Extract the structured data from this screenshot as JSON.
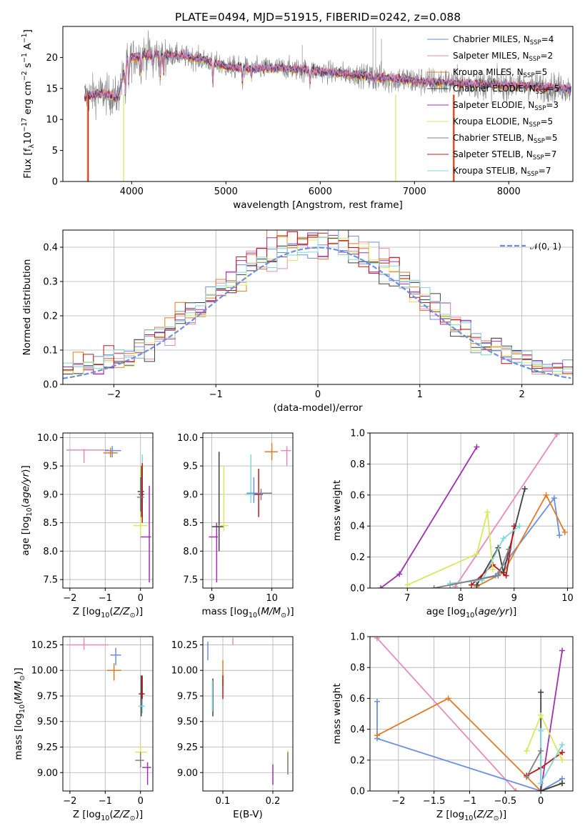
{
  "title": "PLATE=0494, MJD=51915, FIBERID=0242, z=0.088",
  "colors": {
    "s1": "#6b8fe0",
    "s2": "#e58bbd",
    "s3": "#e07b28",
    "s4": "#404040",
    "s5": "#a030b0",
    "s6": "#d8e860",
    "s7": "#808080",
    "s8": "#c01818",
    "s9": "#80d8d8",
    "normal": "#6b8fe0",
    "data": "#bbbbbb",
    "grid": "#b0b0b0"
  },
  "legend_spectrum": [
    {
      "base": "Chabrier MILES, N",
      "sub": "SSP",
      "tail": "=4",
      "color": "s1"
    },
    {
      "base": "Salpeter MILES, N",
      "sub": "SSP",
      "tail": "=2",
      "color": "s2"
    },
    {
      "base": "Kroupa MILES, N",
      "sub": "SSP",
      "tail": "=5",
      "color": "s3"
    },
    {
      "base": "Chabrier ELODIE, N",
      "sub": "SSP",
      "tail": "=5",
      "color": "s4"
    },
    {
      "base": "Salpeter ELODIE, N",
      "sub": "SSP",
      "tail": "=3",
      "color": "s5"
    },
    {
      "base": "Kroupa ELODIE, N",
      "sub": "SSP",
      "tail": "=5",
      "color": "s6"
    },
    {
      "base": "Chabrier STELIB, N",
      "sub": "SSP",
      "tail": "=5",
      "color": "s7"
    },
    {
      "base": "Salpeter STELIB, N",
      "sub": "SSP",
      "tail": "=7",
      "color": "s8"
    },
    {
      "base": "Kroupa STELIB, N",
      "sub": "SSP",
      "tail": "=7",
      "color": "s9"
    }
  ],
  "legend_hist": "𝒩(0, 1)",
  "chart_data": [
    {
      "id": "spectrum",
      "type": "line",
      "xlabel": "wavelength [Angstrom, rest frame]",
      "ylabel": "Flux [f_λ 10^-17 erg cm^-2 s^-1 A^-1]",
      "xlim": [
        3270,
        8680
      ],
      "ylim": [
        0,
        25
      ],
      "xticks": [
        4000,
        5000,
        6000,
        7000,
        8000
      ],
      "yticks": [
        0,
        5,
        10,
        15,
        20
      ],
      "continuum": [
        [
          3500,
          13.8
        ],
        [
          3700,
          14.2
        ],
        [
          3850,
          13.5
        ],
        [
          3950,
          19.5
        ],
        [
          4100,
          20.5
        ],
        [
          4300,
          20.5
        ],
        [
          4500,
          20.3
        ],
        [
          4800,
          19.5
        ],
        [
          5000,
          18.5
        ],
        [
          5300,
          18.2
        ],
        [
          5600,
          18.3
        ],
        [
          5900,
          17.9
        ],
        [
          6100,
          17.6
        ],
        [
          6400,
          17.2
        ],
        [
          6600,
          16.8
        ],
        [
          7000,
          16.2
        ],
        [
          7400,
          15.9
        ],
        [
          7800,
          15.6
        ],
        [
          8200,
          15.4
        ],
        [
          8660,
          15.0
        ]
      ]
    },
    {
      "id": "residuals",
      "type": "histogram",
      "xlabel": "(data-model)/error",
      "ylabel": "Normed distribution",
      "xlim": [
        -2.5,
        2.5
      ],
      "ylim": [
        0,
        0.45
      ],
      "xticks": [
        -2,
        -1,
        0,
        1,
        2
      ],
      "yticks": [
        0.0,
        0.1,
        0.2,
        0.3,
        0.4
      ],
      "reference": "N(0,1)"
    },
    {
      "id": "age_vs_Z",
      "type": "scatter",
      "xlabel": "Z [log10(Z/Z⊙)]",
      "ylabel": "age  [log10(age/yr)]",
      "xlim": [
        -2.2,
        0.35
      ],
      "ylim": [
        7.35,
        10.08
      ],
      "xticks": [
        -2,
        -1,
        0
      ],
      "yticks": [
        7.5,
        8.0,
        8.5,
        9.0,
        9.5,
        10.0
      ],
      "points": [
        {
          "c": "s2",
          "x": -1.6,
          "y": 9.78,
          "xe": [
            -2.1,
            -0.9
          ],
          "ye": [
            9.55,
            9.8
          ]
        },
        {
          "c": "s1",
          "x": -0.8,
          "y": 9.77,
          "xe": [
            -1.0,
            -0.55
          ],
          "ye": [
            9.65,
            9.85
          ]
        },
        {
          "c": "s3",
          "x": -0.85,
          "y": 9.73,
          "xe": [
            -1.05,
            -0.65
          ],
          "ye": [
            9.65,
            9.82
          ]
        },
        {
          "c": "s4",
          "x": 0.02,
          "y": 9.05,
          "xe": [
            -0.08,
            0.1
          ],
          "ye": [
            8.6,
            9.5
          ]
        },
        {
          "c": "s9",
          "x": 0.05,
          "y": 9.0,
          "xe": [
            -0.05,
            0.12
          ],
          "ye": [
            8.6,
            9.7
          ]
        },
        {
          "c": "s5",
          "x": 0.25,
          "y": 8.25,
          "xe": [
            0.0,
            0.3
          ],
          "ye": [
            7.45,
            9.15
          ]
        },
        {
          "c": "s6",
          "x": 0.0,
          "y": 8.45,
          "xe": [
            -0.2,
            0.2
          ],
          "ye": [
            8.25,
            9.5
          ]
        },
        {
          "c": "s8",
          "x": 0.05,
          "y": 9.0,
          "xe": [
            -0.05,
            0.1
          ],
          "ye": [
            8.5,
            9.55
          ]
        },
        {
          "c": "s7",
          "x": 0.0,
          "y": 8.95,
          "xe": [
            -0.1,
            0.1
          ],
          "ye": [
            8.7,
            9.3
          ]
        }
      ]
    },
    {
      "id": "age_vs_mass",
      "type": "scatter",
      "xlabel": "mass [log10(M/M⊙)]",
      "ylabel": "",
      "xlim": [
        8.85,
        10.35
      ],
      "ylim": [
        7.35,
        10.08
      ],
      "xticks": [
        9,
        10
      ],
      "yticks": [
        7.5,
        8.0,
        8.5,
        9.0,
        9.5,
        10.0
      ],
      "points": [
        {
          "c": "s2",
          "x": 10.25,
          "y": 9.77,
          "xe": [
            10.15,
            10.32
          ],
          "ye": [
            9.5,
            9.85
          ]
        },
        {
          "c": "s3",
          "x": 10.0,
          "y": 9.75,
          "xe": [
            9.88,
            10.1
          ],
          "ye": [
            9.6,
            9.9
          ]
        },
        {
          "c": "s5",
          "x": 9.08,
          "y": 8.25,
          "xe": [
            8.95,
            9.1
          ],
          "ye": [
            7.45,
            8.5
          ]
        },
        {
          "c": "s4",
          "x": 9.12,
          "y": 8.43,
          "xe": [
            9.0,
            9.2
          ],
          "ye": [
            8.0,
            9.75
          ]
        },
        {
          "c": "s6",
          "x": 9.2,
          "y": 8.45,
          "xe": [
            9.12,
            9.28
          ],
          "ye": [
            8.35,
            9.5
          ]
        },
        {
          "c": "s9",
          "x": 9.65,
          "y": 9.0,
          "xe": [
            9.55,
            9.75
          ],
          "ye": [
            8.85,
            9.7
          ]
        },
        {
          "c": "s8",
          "x": 9.78,
          "y": 9.0,
          "xe": [
            9.7,
            9.85
          ],
          "ye": [
            8.6,
            9.45
          ]
        },
        {
          "c": "s7",
          "x": 9.82,
          "y": 9.02,
          "xe": [
            9.62,
            10.0
          ],
          "ye": [
            8.9,
            9.1
          ]
        },
        {
          "c": "s1",
          "x": 9.7,
          "y": 9.02,
          "xe": [
            9.58,
            9.85
          ],
          "ye": [
            8.85,
            9.3
          ]
        }
      ]
    },
    {
      "id": "weight_vs_age",
      "type": "line",
      "xlabel": "age  [log10(age/yr)]",
      "ylabel": "mass weight",
      "xlim": [
        6.3,
        10.1
      ],
      "ylim": [
        0,
        1
      ],
      "xticks": [
        7,
        8,
        9,
        10
      ],
      "yticks": [
        0.0,
        0.2,
        0.4,
        0.6,
        0.8,
        1.0
      ],
      "series": [
        {
          "c": "s5",
          "x": [
            6.5,
            6.85,
            8.3
          ],
          "y": [
            0.0,
            0.09,
            0.91
          ]
        },
        {
          "c": "s2",
          "x": [
            7.9,
            9.8
          ],
          "y": [
            0.01,
            0.99
          ]
        },
        {
          "c": "s1",
          "x": [
            7.8,
            8.65,
            9.75,
            9.85
          ],
          "y": [
            0.02,
            0.08,
            0.58,
            0.34
          ]
        },
        {
          "c": "s3",
          "x": [
            8.3,
            8.8,
            9.6,
            9.95
          ],
          "y": [
            0.01,
            0.1,
            0.6,
            0.36
          ]
        },
        {
          "c": "s4",
          "x": [
            8.3,
            8.7,
            8.8,
            9.2
          ],
          "y": [
            0.02,
            0.26,
            0.1,
            0.64
          ]
        },
        {
          "c": "s8",
          "x": [
            8.2,
            8.6,
            8.85,
            9.0
          ],
          "y": [
            0.02,
            0.15,
            0.08,
            0.4
          ]
        },
        {
          "c": "s6",
          "x": [
            7.0,
            8.3,
            8.5,
            8.6
          ],
          "y": [
            0.02,
            0.22,
            0.49,
            0.12
          ]
        },
        {
          "c": "s9",
          "x": [
            7.8,
            8.4,
            8.8,
            9.1
          ],
          "y": [
            0.03,
            0.05,
            0.32,
            0.4
          ]
        },
        {
          "c": "s7",
          "x": [
            7.5,
            8.7,
            8.9
          ],
          "y": [
            0.0,
            0.08,
            0.25
          ]
        }
      ]
    },
    {
      "id": "mass_vs_Z",
      "type": "scatter",
      "xlabel": "Z [log10(Z/Z⊙)]",
      "ylabel": "mass [log10(M/M⊙)]",
      "xlim": [
        -2.2,
        0.35
      ],
      "ylim": [
        8.82,
        10.33
      ],
      "xticks": [
        -2,
        -1,
        0
      ],
      "yticks": [
        9.0,
        9.25,
        9.5,
        9.75,
        10.0,
        10.25
      ],
      "points": [
        {
          "c": "s2",
          "x": -1.6,
          "y": 10.25,
          "xe": [
            -2.1,
            -0.9
          ],
          "ye": [
            10.2,
            10.32
          ]
        },
        {
          "c": "s1",
          "x": -0.7,
          "y": 10.15,
          "xe": [
            -0.85,
            -0.55
          ],
          "ye": [
            10.05,
            10.22
          ]
        },
        {
          "c": "s3",
          "x": -0.75,
          "y": 10.0,
          "xe": [
            -0.95,
            -0.55
          ],
          "ye": [
            9.9,
            10.07
          ]
        },
        {
          "c": "s8",
          "x": 0.05,
          "y": 9.77,
          "xe": [
            -0.05,
            0.12
          ],
          "ye": [
            9.65,
            9.95
          ]
        },
        {
          "c": "s4",
          "x": 0.02,
          "y": 9.65,
          "xe": [
            -0.05,
            0.1
          ],
          "ye": [
            9.55,
            9.95
          ]
        },
        {
          "c": "s9",
          "x": 0.05,
          "y": 9.65,
          "xe": [
            -0.05,
            0.12
          ],
          "ye": [
            9.58,
            9.72
          ]
        },
        {
          "c": "s6",
          "x": 0.0,
          "y": 9.2,
          "xe": [
            -0.15,
            0.18
          ],
          "ye": [
            9.1,
            9.28
          ]
        },
        {
          "c": "s7",
          "x": 0.0,
          "y": 9.12,
          "xe": [
            -0.15,
            0.1
          ],
          "ye": [
            9.05,
            9.2
          ]
        },
        {
          "c": "s5",
          "x": 0.2,
          "y": 9.05,
          "xe": [
            0.05,
            0.3
          ],
          "ye": [
            8.88,
            9.1
          ]
        }
      ]
    },
    {
      "id": "mass_vs_ebv",
      "type": "scatter",
      "xlabel": "E(B-V)",
      "ylabel": "",
      "xlim": [
        0.06,
        0.24
      ],
      "ylim": [
        8.82,
        10.33
      ],
      "xticks": [
        0.1,
        0.2
      ],
      "yticks": [
        9.0,
        9.25,
        9.5,
        9.75,
        10.0,
        10.25
      ],
      "points": [
        {
          "c": "s2",
          "x": 0.12,
          "y": 10.28,
          "xe": [
            0.12,
            0.12
          ],
          "ye": [
            10.25,
            10.32
          ]
        },
        {
          "c": "s1",
          "x": 0.07,
          "y": 10.2,
          "xe": [
            0.07,
            0.07
          ],
          "ye": [
            10.1,
            10.28
          ]
        },
        {
          "c": "s3",
          "x": 0.1,
          "y": 9.97,
          "xe": [
            0.1,
            0.1
          ],
          "ye": [
            9.85,
            10.1
          ]
        },
        {
          "c": "s8",
          "x": 0.1,
          "y": 9.8,
          "xe": [
            0.1,
            0.1
          ],
          "ye": [
            9.72,
            9.95
          ]
        },
        {
          "c": "s4",
          "x": 0.08,
          "y": 9.75,
          "xe": [
            0.08,
            0.08
          ],
          "ye": [
            9.55,
            9.92
          ]
        },
        {
          "c": "s9",
          "x": 0.079,
          "y": 9.7,
          "xe": [
            0.079,
            0.079
          ],
          "ye": [
            9.6,
            9.9
          ]
        },
        {
          "c": "s6",
          "x": 0.23,
          "y": 9.1,
          "xe": [
            0.23,
            0.23
          ],
          "ye": [
            9.0,
            9.22
          ]
        },
        {
          "c": "s7",
          "x": 0.23,
          "y": 9.1,
          "xe": [
            0.23,
            0.23
          ],
          "ye": [
            8.98,
            9.2
          ]
        },
        {
          "c": "s5",
          "x": 0.2,
          "y": 8.98,
          "xe": [
            0.2,
            0.2
          ],
          "ye": [
            8.88,
            9.08
          ]
        }
      ]
    },
    {
      "id": "weight_vs_Z",
      "type": "line",
      "xlabel": "Z [log10(Z/Z⊙)]",
      "ylabel": "mass weight",
      "xlim": [
        -2.4,
        0.45
      ],
      "ylim": [
        0,
        1
      ],
      "xticks": [
        -2.0,
        -1.5,
        -1.0,
        -0.5,
        0.0
      ],
      "yticks": [
        0.0,
        0.2,
        0.4,
        0.6,
        0.8,
        1.0
      ],
      "series": [
        {
          "c": "s2",
          "x": [
            -2.3,
            -0.35
          ],
          "y": [
            0.99,
            0.0
          ]
        },
        {
          "c": "s1",
          "x": [
            -2.3,
            -2.3,
            0.0,
            0.3
          ],
          "y": [
            0.58,
            0.34,
            0.0,
            0.08
          ]
        },
        {
          "c": "s3",
          "x": [
            -2.3,
            -1.3,
            0.0,
            0.3
          ],
          "y": [
            0.36,
            0.6,
            0.0,
            0.05
          ]
        },
        {
          "c": "s5",
          "x": [
            0.0,
            0.3
          ],
          "y": [
            0.0,
            0.91
          ]
        },
        {
          "c": "s4",
          "x": [
            0.0,
            0.0,
            0.3
          ],
          "y": [
            0.64,
            0.0,
            0.05
          ]
        },
        {
          "c": "s8",
          "x": [
            -0.2,
            0.0,
            0.3
          ],
          "y": [
            0.1,
            0.15,
            0.25
          ]
        },
        {
          "c": "s6",
          "x": [
            -0.2,
            0.0,
            0.3
          ],
          "y": [
            0.26,
            0.49,
            0.2
          ]
        },
        {
          "c": "s9",
          "x": [
            0.0,
            0.0,
            0.3
          ],
          "y": [
            0.39,
            0.05,
            0.3
          ]
        },
        {
          "c": "s7",
          "x": [
            -0.2,
            0.0
          ],
          "y": [
            0.09,
            0.26
          ]
        }
      ]
    }
  ]
}
